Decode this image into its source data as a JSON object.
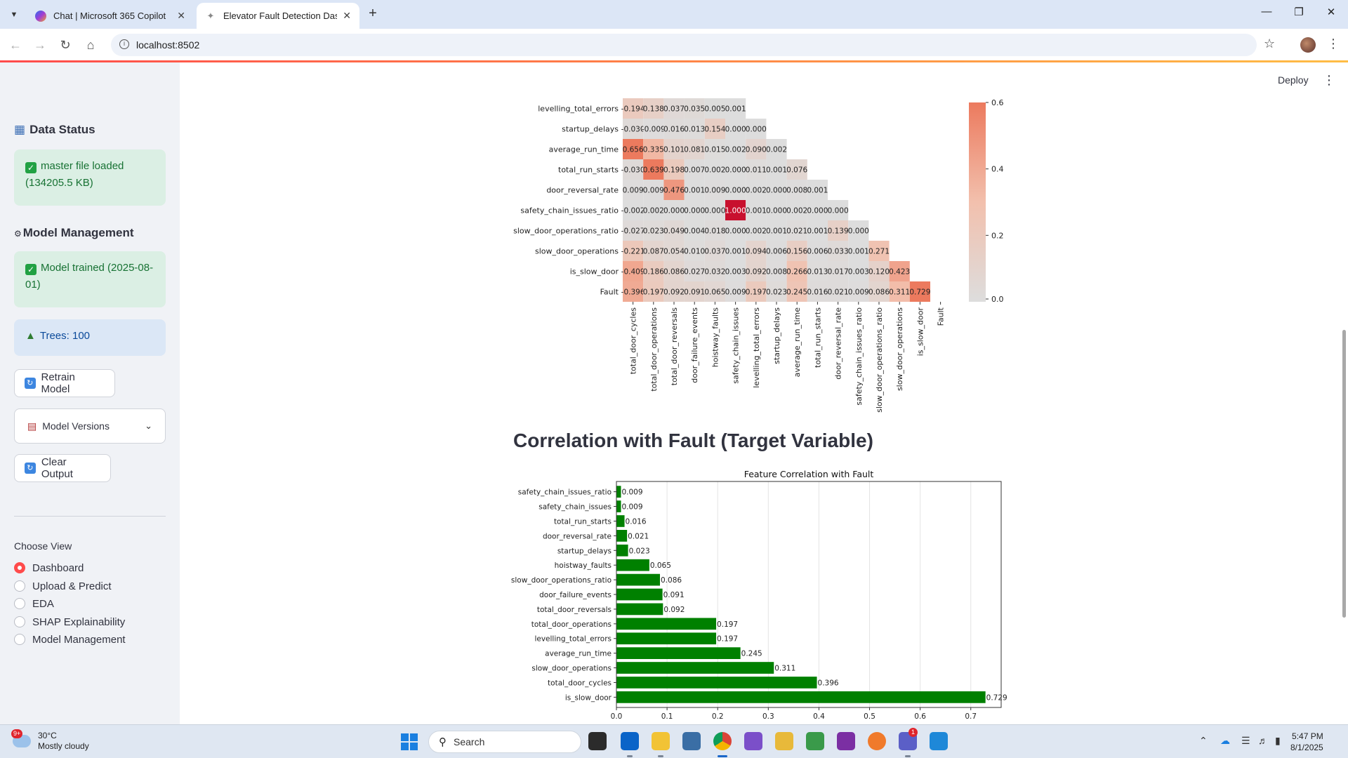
{
  "browser": {
    "tabs": [
      {
        "title": "Chat | Microsoft 365 Copilot",
        "active": false
      },
      {
        "title": "Elevator Fault Detection Dashbo",
        "active": true
      }
    ],
    "url": "localhost:8502"
  },
  "app": {
    "deploy_label": "Deploy"
  },
  "sidebar": {
    "data_status_title": "Data Status",
    "data_status_icon": "bar-chart-icon",
    "master_file_status": "master file loaded (134205.5 KB)",
    "model_management_title": "Model Management",
    "model_status": "Model trained (2025-08-01)",
    "trees_info": "Trees: 100",
    "retrain_button": "Retrain Model",
    "model_versions_label": "Model Versions",
    "clear_output_button": "Clear Output",
    "choose_view_label": "Choose View",
    "views": [
      "Dashboard",
      "Upload & Predict",
      "EDA",
      "SHAP Explainability",
      "Model Management"
    ],
    "selected_view": "Dashboard"
  },
  "main": {
    "section_title": "Correlation with Fault (Target Variable)"
  },
  "chart_data": [
    {
      "type": "heatmap",
      "row_labels": [
        "levelling_total_errors",
        "startup_delays",
        "average_run_time",
        "total_run_starts",
        "door_reversal_rate",
        "safety_chain_issues_ratio",
        "slow_door_operations_ratio",
        "slow_door_operations",
        "is_slow_door",
        "Fault"
      ],
      "col_labels": [
        "total_door_cycles",
        "total_door_operations",
        "total_door_reversals",
        "door_failure_events",
        "hoistway_faults",
        "safety_chain_issues",
        "levelling_total_errors",
        "startup_delays",
        "average_run_time",
        "total_run_starts",
        "door_reversal_rate",
        "safety_chain_issues_ratio",
        "slow_door_operations_ratio",
        "slow_door_operations",
        "is_slow_door",
        "Fault"
      ],
      "cell_labels": [
        [
          "-0.194",
          "0.138",
          "0.037",
          "0.035",
          "0.005",
          "0.001"
        ],
        [
          "-0.030",
          "-0.009",
          "0.016",
          "0.013",
          "0.154",
          "0.000",
          "0.000"
        ],
        [
          "0.656",
          "0.335",
          "0.101",
          "0.081",
          "0.015",
          "0.002",
          "0.090",
          "0.002"
        ],
        [
          "-0.030",
          "0.639",
          "0.198",
          "0.007",
          "0.002",
          "0.000",
          "0.011",
          "0.001",
          "0.076"
        ],
        [
          "0.009",
          "0.009",
          "0.476",
          "0.001",
          "0.009",
          "0.000",
          "0.002",
          "0.000",
          "0.008",
          "0.001"
        ],
        [
          "-0.002",
          "0.002",
          "0.000",
          "0.000",
          "0.000",
          "1.000",
          "0.001",
          "0.000",
          "0.002",
          "0.000",
          "0.000"
        ],
        [
          "-0.027",
          "0.023",
          "0.049",
          "0.004",
          "0.018",
          "0.000",
          "0.002",
          "0.001",
          "0.021",
          "0.001",
          "0.139",
          "0.000"
        ],
        [
          "-0.221",
          "0.087",
          "0.054",
          "0.010",
          "0.037",
          "0.001",
          "0.094",
          "0.006",
          "0.156",
          "0.006",
          "0.033",
          "0.001",
          "0.271"
        ],
        [
          "-0.409",
          "0.186",
          "0.086",
          "0.027",
          "0.032",
          "0.003",
          "0.092",
          "0.008",
          "0.266",
          "0.013",
          "0.017",
          "0.003",
          "0.120",
          "0.423"
        ],
        [
          "-0.396",
          "0.197",
          "0.092",
          "0.091",
          "0.065",
          "0.009",
          "0.197",
          "0.023",
          "0.245",
          "0.016",
          "0.021",
          "0.009",
          "0.086",
          "0.311",
          "0.729"
        ]
      ],
      "colorbar_ticks": [
        "0.0",
        "0.2",
        "0.4",
        "0.6"
      ],
      "colorbar_range": [
        0,
        0.6
      ]
    },
    {
      "type": "bar",
      "orientation": "horizontal",
      "title": "Feature Correlation with Fault",
      "categories": [
        "safety_chain_issues_ratio",
        "safety_chain_issues",
        "total_run_starts",
        "door_reversal_rate",
        "startup_delays",
        "hoistway_faults",
        "slow_door_operations_ratio",
        "door_failure_events",
        "total_door_reversals",
        "total_door_operations",
        "levelling_total_errors",
        "average_run_time",
        "slow_door_operations",
        "total_door_cycles",
        "is_slow_door"
      ],
      "values": [
        0.009,
        0.009,
        0.016,
        0.021,
        0.023,
        0.065,
        0.086,
        0.091,
        0.092,
        0.197,
        0.197,
        0.245,
        0.311,
        0.396,
        0.729
      ],
      "xlim": [
        0,
        0.76
      ],
      "xticks": [
        "0.0",
        "0.1",
        "0.2",
        "0.3",
        "0.4",
        "0.5",
        "0.6",
        "0.7"
      ],
      "bar_color": "#008000",
      "grid": true
    }
  ],
  "taskbar": {
    "weather_badge": "9+",
    "temperature": "30°C",
    "weather_desc": "Mostly cloudy",
    "search_placeholder": "Search",
    "teams_badge": "1",
    "time": "5:47 PM",
    "date": "8/1/2025"
  }
}
